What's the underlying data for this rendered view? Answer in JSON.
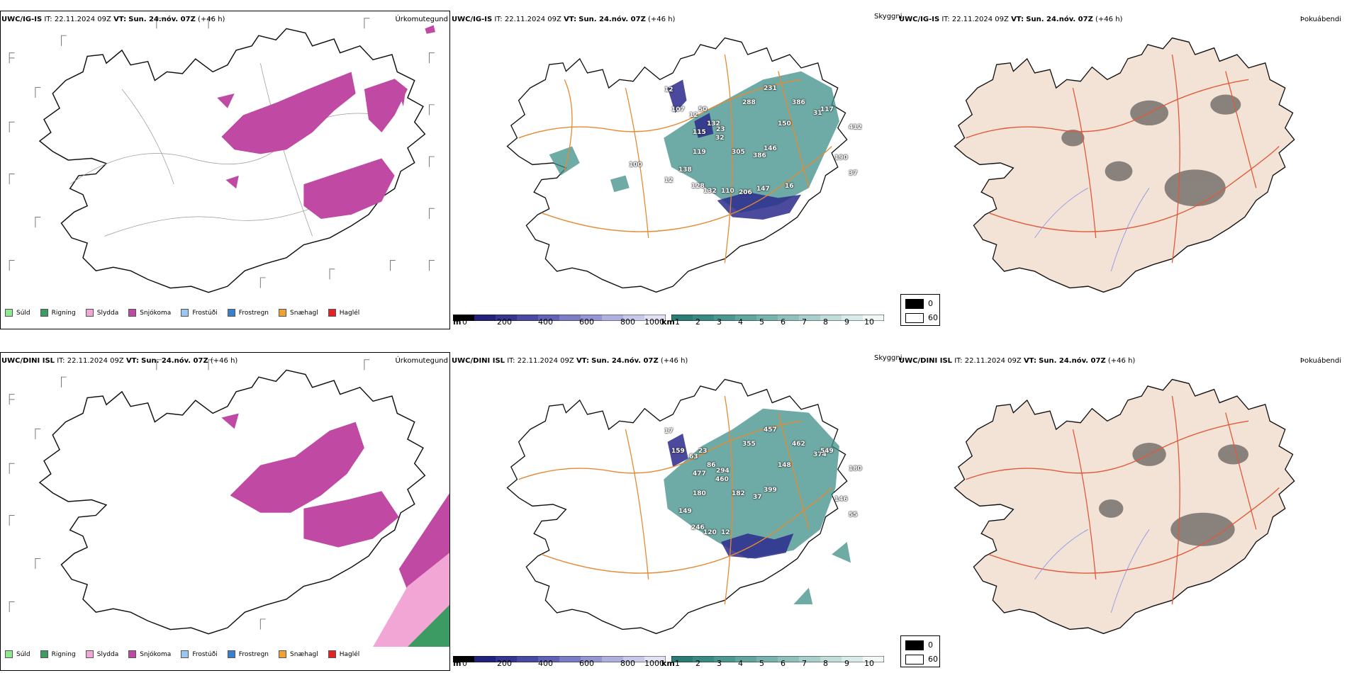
{
  "rows": [
    {
      "model": "UWC/IG-IS",
      "it_label": "IT:",
      "it_value": "22.11.2024 09Z",
      "vt_label": "VT:",
      "vt_value": "Sun. 24.nóv. 07Z",
      "lead": "(+46 h)",
      "ceiling_labels": [
        "12",
        "107",
        "12",
        "50",
        "132",
        "115",
        "23",
        "32",
        "288",
        "231",
        "386",
        "150",
        "31",
        "117",
        "146",
        "305",
        "386",
        "412",
        "190",
        "37",
        "119",
        "138",
        "128",
        "132",
        "110",
        "206",
        "147",
        "16",
        "12",
        "100"
      ]
    },
    {
      "model": "UWC/DINI ISL",
      "it_label": "IT:",
      "it_value": "22.11.2024 09Z",
      "vt_label": "VT:",
      "vt_value": "Sun. 24.nóv. 07Z",
      "lead": "(+46 h)",
      "ceiling_labels": [
        "17",
        "159",
        "63",
        "23",
        "86",
        "477",
        "294",
        "460",
        "355",
        "457",
        "462",
        "148",
        "374",
        "549",
        "399",
        "182",
        "37",
        "180",
        "146",
        "55",
        "180",
        "149",
        "246",
        "120",
        "12"
      ]
    }
  ],
  "panel_titles": {
    "precip_type": "Úrkomutegund",
    "cloud_ceiling": "Skyggni",
    "fog": "Þokuábendi"
  },
  "precip_legend": [
    {
      "label": "Súld",
      "color": "#8ee88e"
    },
    {
      "label": "Rigning",
      "color": "#3c9a63"
    },
    {
      "label": "Slydda",
      "color": "#f2a6d6"
    },
    {
      "label": "Snjókoma",
      "color": "#c04aa3"
    },
    {
      "label": "Frostúði",
      "color": "#9cc6ee"
    },
    {
      "label": "Frostregn",
      "color": "#3a7fcc"
    },
    {
      "label": "Snæhagl",
      "color": "#f1a032"
    },
    {
      "label": "Haglél",
      "color": "#e52222"
    }
  ],
  "colorbar_ceiling": {
    "unit": "m",
    "ticks": [
      "0",
      "200",
      "400",
      "600",
      "800",
      "1000"
    ]
  },
  "colorbar_visibility": {
    "unit": "km",
    "ticks": [
      "1",
      "2",
      "3",
      "4",
      "5",
      "6",
      "7",
      "8",
      "9",
      "10"
    ]
  },
  "fog_legend": {
    "values": [
      "0",
      "60"
    ]
  },
  "colors": {
    "snow": "#c04aa3",
    "sleet": "#f2a6d6",
    "rain": "#3c9a63",
    "teal": "#3f8f88",
    "navy": "#2b2a8c",
    "roads": "#e58a32",
    "land_fog": "#f3e2d6",
    "fog_roads": "#e05a3a"
  }
}
